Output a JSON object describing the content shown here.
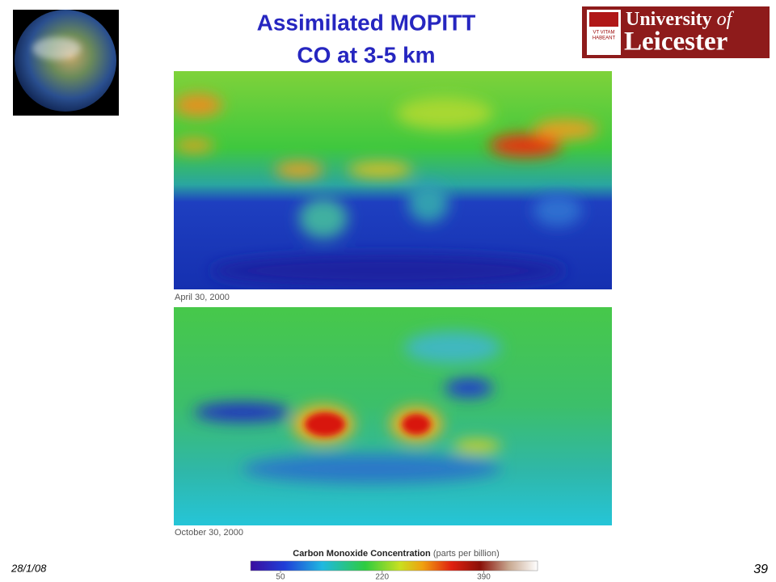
{
  "header": {
    "title_lines": [
      "Assimilated MOPITT",
      "CO at 3-5 km"
    ],
    "logo": {
      "line1": "University",
      "line1_suffix": "of",
      "line2": "Leicester",
      "motto_1": "VT VITAM",
      "motto_2": "HABEANT"
    }
  },
  "maps": [
    {
      "caption": "April 30, 2000"
    },
    {
      "caption": "October 30, 2000"
    }
  ],
  "colorbar": {
    "title": "Carbon Monoxide Concentration",
    "units": "(parts per billion)",
    "lim": [
      0,
      480
    ],
    "ticks": [
      50,
      220,
      390
    ]
  },
  "footer": {
    "date": "28/1/08",
    "page": "39"
  }
}
